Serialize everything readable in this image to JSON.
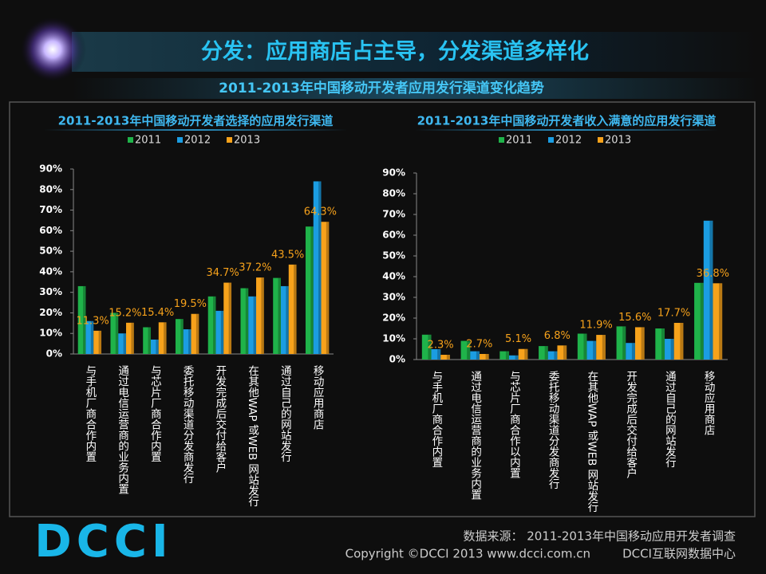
{
  "header": {
    "title": "分发：应用商店占主导，分发渠道多样化",
    "subtitle": "2011-2013年中国移动开发者应用发行渠道变化趋势"
  },
  "chart_data": [
    {
      "type": "bar",
      "title": "2011-2013年中国移动开发者选择的应用发行渠道",
      "categories": [
        "与手机厂商合作内置",
        "通过电信运营商的业务内置",
        "与芯片厂商合作内置",
        "委托移动渠道分发商发行",
        "开发完成后交付给客户",
        "在其他WAP 或WEB 网站发行",
        "通过自己的网站发行",
        "移动应用商店"
      ],
      "series": [
        {
          "name": "2011",
          "color": "#1fb34a",
          "values": [
            33,
            20,
            13,
            17,
            28,
            32,
            37,
            62
          ]
        },
        {
          "name": "2012",
          "color": "#1b9de2",
          "values": [
            16,
            10,
            7,
            12,
            21,
            28,
            33,
            84
          ]
        },
        {
          "name": "2013",
          "color": "#f7a21b",
          "values": [
            11.3,
            15.2,
            15.4,
            19.5,
            34.7,
            37.2,
            43.5,
            64.3
          ],
          "value_labels": [
            "11.3%",
            "15.2%",
            "15.4%",
            "19.5%",
            "34.7%",
            "37.2%",
            "43.5%",
            "64.3%"
          ]
        }
      ],
      "ylim": [
        0,
        90
      ],
      "yticks": [
        {
          "value": 0,
          "label": "0%"
        },
        {
          "value": 10,
          "label": "10%"
        },
        {
          "value": 20,
          "label": "20%"
        },
        {
          "value": 30,
          "label": "30%"
        },
        {
          "value": 40,
          "label": "40%"
        },
        {
          "value": 50,
          "label": "50%"
        },
        {
          "value": 60,
          "label": "60%"
        },
        {
          "value": 70,
          "label": "70%"
        },
        {
          "value": 80,
          "label": "80%"
        },
        {
          "value": 90,
          "label": "90%"
        }
      ],
      "legend": "top"
    },
    {
      "type": "bar",
      "title": "2011-2013年中国移动开发者收入满意的应用发行渠道",
      "categories": [
        "与手机厂商合作内置",
        "通过电信运营商的业务内置",
        "与芯片厂商合作以内置",
        "委托移动渠道分发商发行",
        "在其他WAP 或WEB 网站发行",
        "开发完成后交付给客户",
        "通过自己的网站发行",
        "移动应用商店"
      ],
      "series": [
        {
          "name": "2011",
          "color": "#1fb34a",
          "values": [
            12,
            9,
            4,
            6.5,
            12.5,
            16,
            15,
            37
          ]
        },
        {
          "name": "2012",
          "color": "#1b9de2",
          "values": [
            5,
            4,
            2,
            4,
            9,
            8,
            10,
            67
          ]
        },
        {
          "name": "2013",
          "color": "#f7a21b",
          "values": [
            2.3,
            2.7,
            5.1,
            6.8,
            11.9,
            15.6,
            17.7,
            36.8
          ],
          "value_labels": [
            "2.3%",
            "2.7%",
            "5.1%",
            "6.8%",
            "11.9%",
            "15.6%",
            "17.7%",
            "36.8%"
          ]
        }
      ],
      "ylim": [
        0,
        90
      ],
      "yticks": [
        {
          "value": 0,
          "label": "0%"
        },
        {
          "value": 10,
          "label": "10%"
        },
        {
          "value": 20,
          "label": "20%"
        },
        {
          "value": 30,
          "label": "30%"
        },
        {
          "value": 40,
          "label": "40%"
        },
        {
          "value": 50,
          "label": "50%"
        },
        {
          "value": 60,
          "label": "60%"
        },
        {
          "value": 70,
          "label": "70%"
        },
        {
          "value": 80,
          "label": "80%"
        },
        {
          "value": 90,
          "label": "90%"
        }
      ],
      "legend": "top"
    }
  ],
  "footer": {
    "logo": "DCCI",
    "source": "数据来源：  2011-2013年中国移动应用开发者调查",
    "copyright": "Copyright ©DCCI 2013 www.dcci.com.cn",
    "org": "DCCI互联网数据中心"
  }
}
